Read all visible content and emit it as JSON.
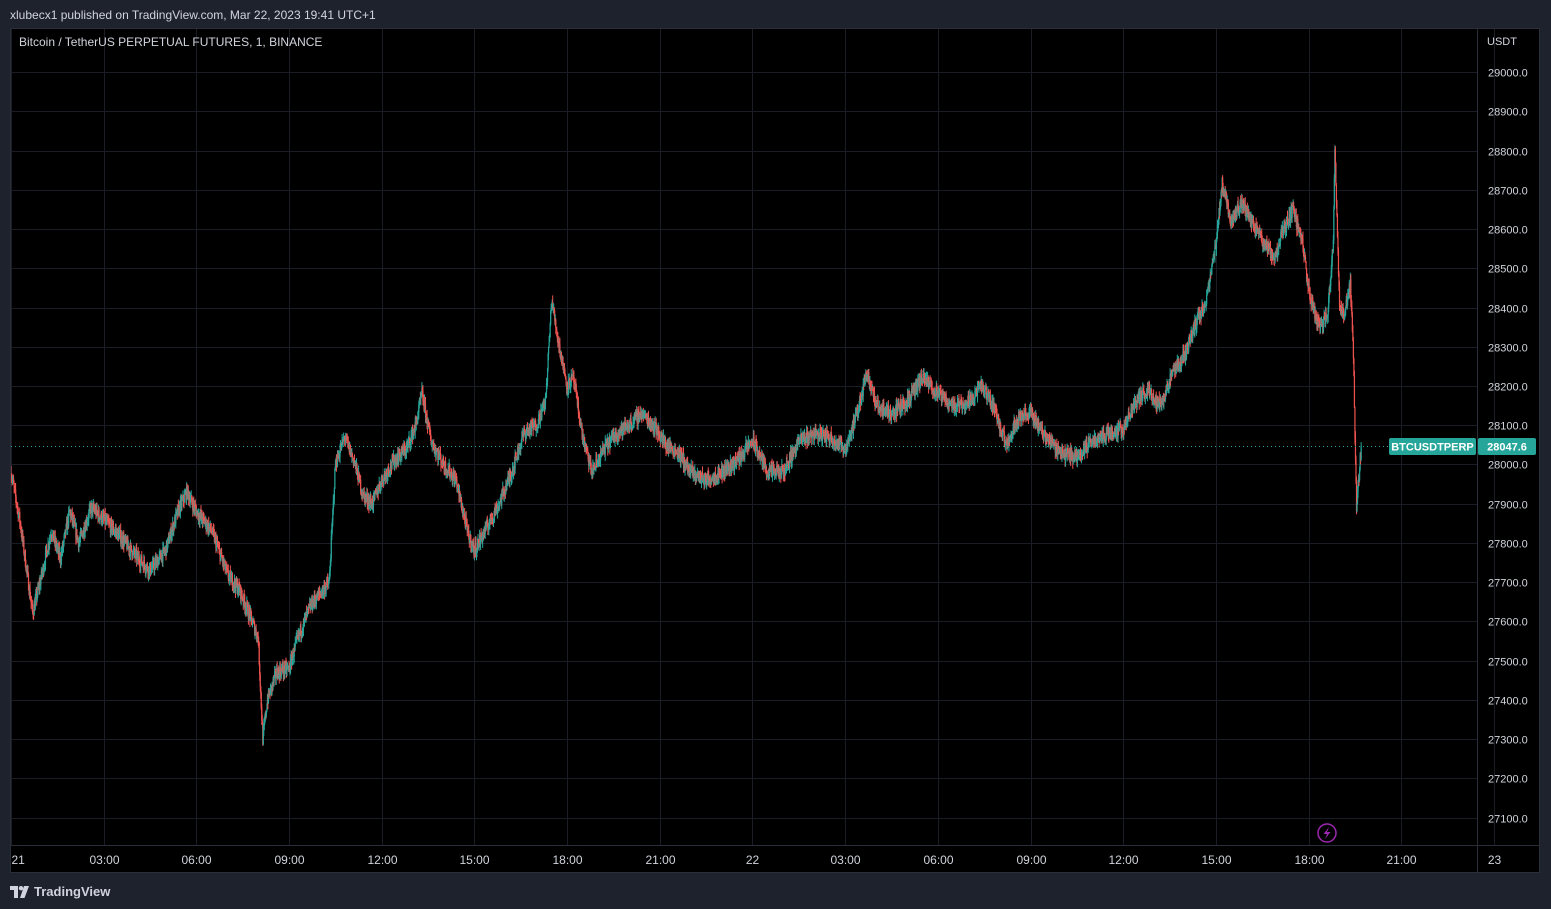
{
  "header": {
    "published_line": "xlubecx1 published on TradingView.com, Mar 22, 2023 19:41 UTC+1"
  },
  "chart_title": "Bitcoin / TetherUS PERPETUAL FUTURES, 1, BINANCE",
  "price_axis": {
    "currency": "USDT",
    "ticks": [
      "29000.0",
      "28900.0",
      "28800.0",
      "28700.0",
      "28600.0",
      "28500.0",
      "28400.0",
      "28300.0",
      "28200.0",
      "28100.0",
      "28000.0",
      "27900.0",
      "27800.0",
      "27700.0",
      "27600.0",
      "27500.0",
      "27400.0",
      "27300.0",
      "27200.0",
      "27100.0"
    ]
  },
  "time_axis": {
    "ticks": [
      "21",
      "03:00",
      "06:00",
      "09:00",
      "12:00",
      "15:00",
      "18:00",
      "21:00",
      "22",
      "03:00",
      "06:00",
      "09:00",
      "12:00",
      "15:00",
      "18:00",
      "21:00",
      "23"
    ]
  },
  "last_price": {
    "symbol": "BTCUSDTPERP",
    "value": "28047.6",
    "color": "#26a69a"
  },
  "footer": {
    "brand": "TradingView"
  },
  "colors": {
    "up": "#26a69a",
    "down": "#ef5350",
    "grid": "#1a1d26",
    "background": "#000000",
    "panel": "#1e222d",
    "alert_icon": "#9c27b0"
  },
  "icons": {
    "alert": "lightning-icon",
    "logo": "tradingview-logo-icon"
  },
  "chart_data": {
    "type": "candlestick",
    "title": "Bitcoin / TetherUS PERPETUAL FUTURES, 1, BINANCE",
    "interval": "1 minute",
    "x_unit": "hours since 2023-03-21 00:00",
    "y_unit": "USDT",
    "ylim": [
      27030,
      29110
    ],
    "xlim": [
      0,
      47.45
    ],
    "grid": true,
    "price_path": [
      [
        0.0,
        27980
      ],
      [
        0.3,
        27850
      ],
      [
        0.7,
        27620
      ],
      [
        1.0,
        27720
      ],
      [
        1.3,
        27830
      ],
      [
        1.6,
        27760
      ],
      [
        1.9,
        27880
      ],
      [
        2.2,
        27800
      ],
      [
        2.6,
        27890
      ],
      [
        3.0,
        27860
      ],
      [
        3.5,
        27820
      ],
      [
        4.0,
        27770
      ],
      [
        4.5,
        27730
      ],
      [
        5.0,
        27780
      ],
      [
        5.4,
        27880
      ],
      [
        5.7,
        27930
      ],
      [
        6.0,
        27880
      ],
      [
        6.5,
        27830
      ],
      [
        7.0,
        27720
      ],
      [
        7.4,
        27680
      ],
      [
        7.7,
        27620
      ],
      [
        8.0,
        27560
      ],
      [
        8.15,
        27300
      ],
      [
        8.3,
        27400
      ],
      [
        8.6,
        27470
      ],
      [
        9.0,
        27480
      ],
      [
        9.3,
        27560
      ],
      [
        9.7,
        27640
      ],
      [
        10.0,
        27670
      ],
      [
        10.3,
        27700
      ],
      [
        10.5,
        28000
      ],
      [
        10.8,
        28070
      ],
      [
        11.1,
        28010
      ],
      [
        11.4,
        27920
      ],
      [
        11.7,
        27900
      ],
      [
        12.0,
        27960
      ],
      [
        12.4,
        28010
      ],
      [
        12.8,
        28040
      ],
      [
        13.1,
        28100
      ],
      [
        13.3,
        28180
      ],
      [
        13.6,
        28060
      ],
      [
        14.0,
        28000
      ],
      [
        14.4,
        27960
      ],
      [
        14.8,
        27820
      ],
      [
        15.0,
        27780
      ],
      [
        15.4,
        27840
      ],
      [
        15.8,
        27900
      ],
      [
        16.2,
        27980
      ],
      [
        16.6,
        28080
      ],
      [
        17.0,
        28100
      ],
      [
        17.3,
        28160
      ],
      [
        17.5,
        28420
      ],
      [
        17.7,
        28320
      ],
      [
        18.0,
        28200
      ],
      [
        18.2,
        28220
      ],
      [
        18.5,
        28070
      ],
      [
        18.8,
        27980
      ],
      [
        19.2,
        28040
      ],
      [
        19.6,
        28080
      ],
      [
        20.0,
        28100
      ],
      [
        20.4,
        28130
      ],
      [
        20.8,
        28100
      ],
      [
        21.2,
        28050
      ],
      [
        21.6,
        28030
      ],
      [
        22.0,
        27980
      ],
      [
        22.5,
        27960
      ],
      [
        23.0,
        27980
      ],
      [
        23.5,
        28010
      ],
      [
        24.0,
        28060
      ],
      [
        24.5,
        27980
      ],
      [
        25.0,
        27980
      ],
      [
        25.5,
        28060
      ],
      [
        26.0,
        28080
      ],
      [
        26.5,
        28070
      ],
      [
        27.0,
        28040
      ],
      [
        27.4,
        28130
      ],
      [
        27.7,
        28240
      ],
      [
        28.0,
        28150
      ],
      [
        28.5,
        28130
      ],
      [
        29.0,
        28160
      ],
      [
        29.5,
        28220
      ],
      [
        30.0,
        28180
      ],
      [
        30.5,
        28150
      ],
      [
        31.0,
        28160
      ],
      [
        31.4,
        28200
      ],
      [
        31.8,
        28150
      ],
      [
        32.2,
        28050
      ],
      [
        32.6,
        28120
      ],
      [
        33.0,
        28130
      ],
      [
        33.5,
        28070
      ],
      [
        34.0,
        28030
      ],
      [
        34.5,
        28020
      ],
      [
        35.0,
        28060
      ],
      [
        35.5,
        28080
      ],
      [
        36.0,
        28090
      ],
      [
        36.4,
        28160
      ],
      [
        36.8,
        28190
      ],
      [
        37.2,
        28150
      ],
      [
        37.6,
        28230
      ],
      [
        38.0,
        28280
      ],
      [
        38.3,
        28350
      ],
      [
        38.7,
        28420
      ],
      [
        39.0,
        28560
      ],
      [
        39.2,
        28720
      ],
      [
        39.5,
        28620
      ],
      [
        39.8,
        28670
      ],
      [
        40.0,
        28640
      ],
      [
        40.3,
        28600
      ],
      [
        40.6,
        28560
      ],
      [
        40.9,
        28520
      ],
      [
        41.1,
        28580
      ],
      [
        41.5,
        28650
      ],
      [
        41.8,
        28560
      ],
      [
        42.0,
        28450
      ],
      [
        42.2,
        28380
      ],
      [
        42.4,
        28350
      ],
      [
        42.6,
        28380
      ],
      [
        42.8,
        28560
      ],
      [
        42.85,
        28820
      ],
      [
        43.0,
        28400
      ],
      [
        43.15,
        28380
      ],
      [
        43.35,
        28460
      ],
      [
        43.45,
        28280
      ],
      [
        43.55,
        27880
      ],
      [
        43.7,
        28047.6
      ]
    ]
  }
}
